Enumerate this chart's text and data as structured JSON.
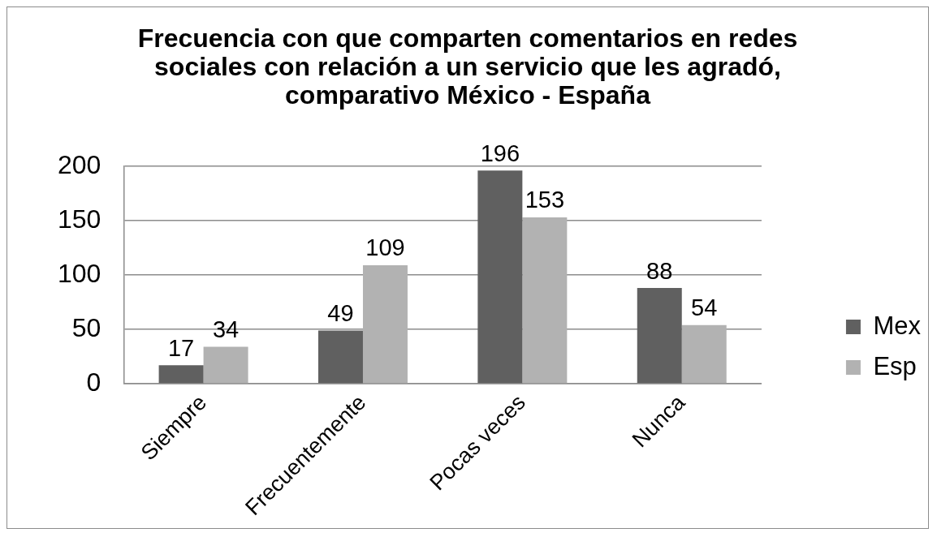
{
  "chart_data": {
    "type": "bar",
    "title": "Frecuencia con que comparten comentarios en redes sociales con relación a un servicio que les agradó, comparativo México - España",
    "categories": [
      "Siempre",
      "Frecuentemente",
      "Pocas veces",
      "Nunca"
    ],
    "series": [
      {
        "name": "Mex",
        "color": "#606060",
        "values": [
          17,
          49,
          196,
          88
        ]
      },
      {
        "name": "Esp",
        "color": "#b2b2b2",
        "values": [
          34,
          109,
          153,
          54
        ]
      }
    ],
    "ylim": [
      0,
      200
    ],
    "yticks": [
      0,
      50,
      100,
      150,
      200
    ],
    "grid": "y",
    "legend": "right",
    "data_labels": true
  }
}
